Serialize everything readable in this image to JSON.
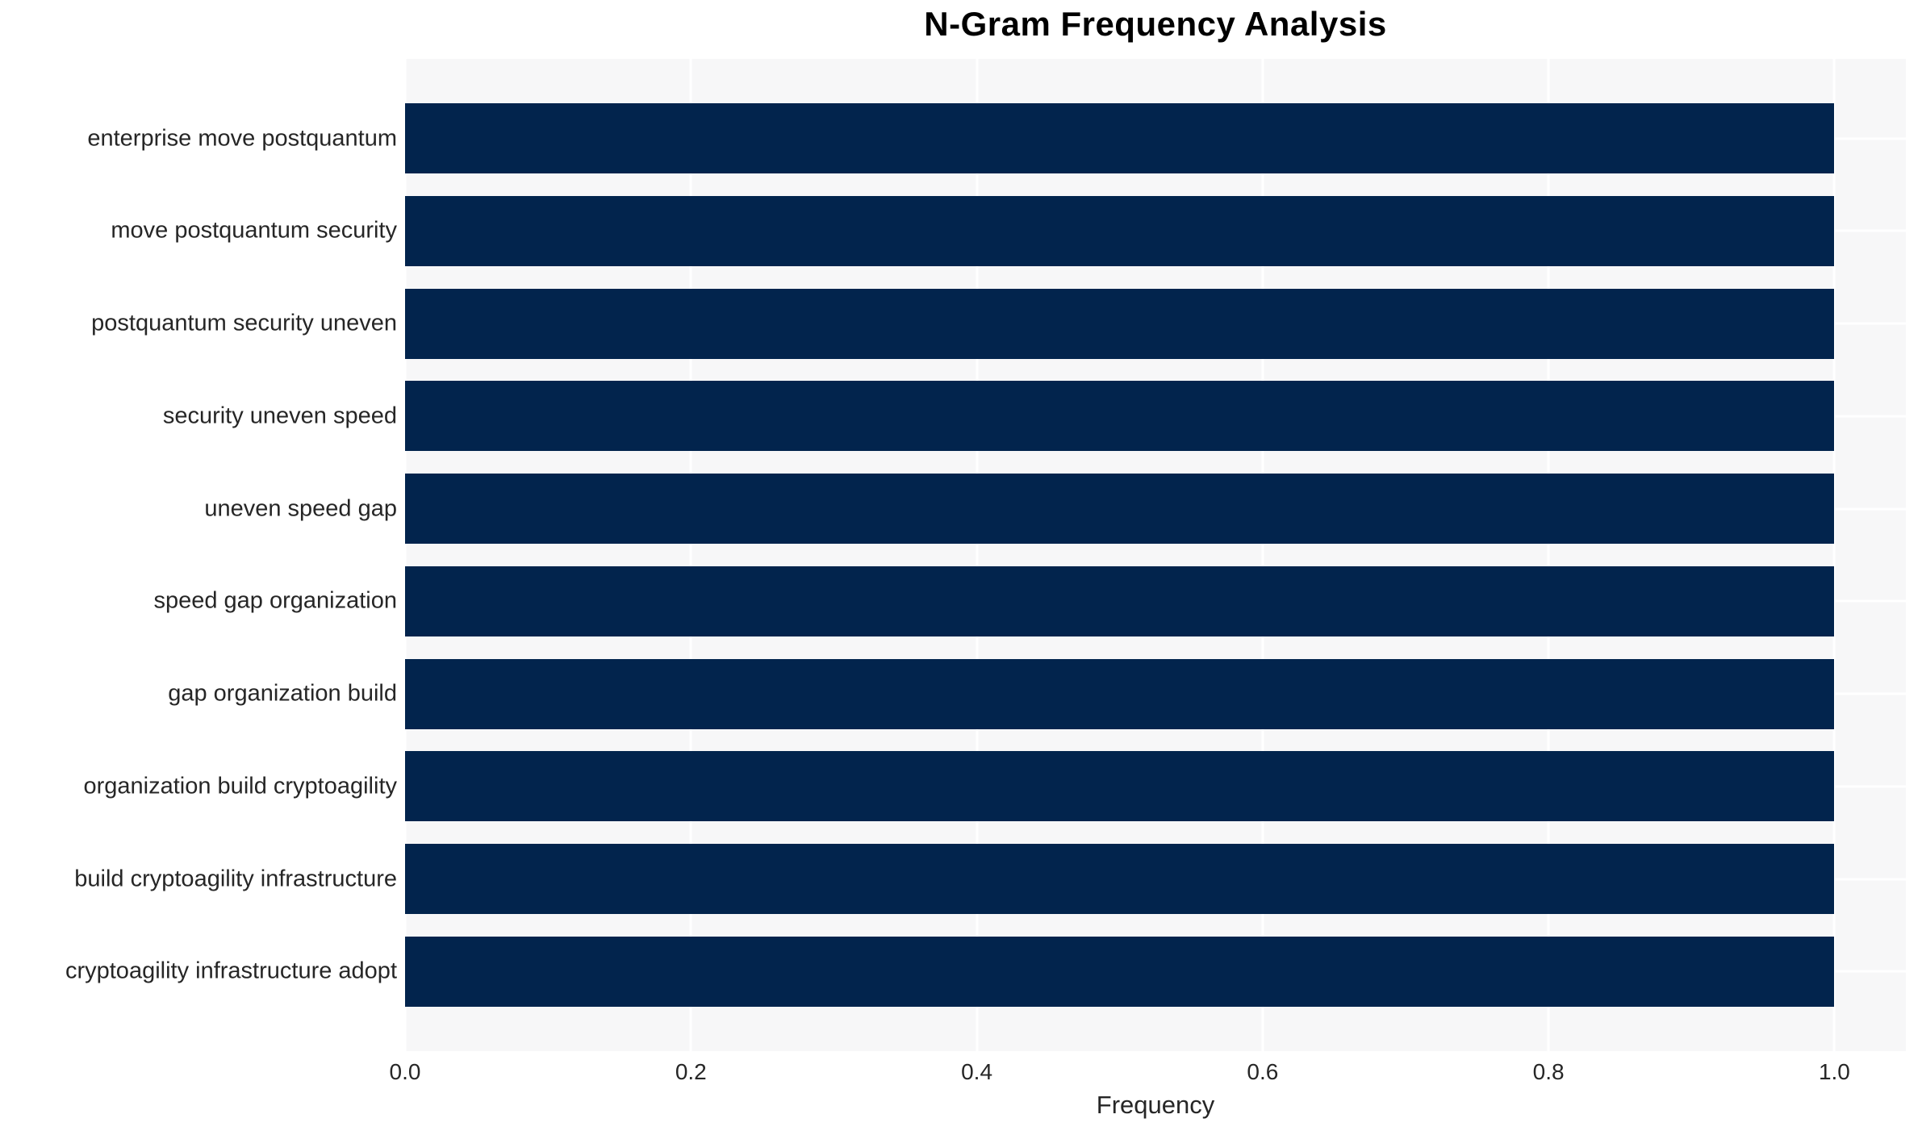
{
  "chart_data": {
    "type": "bar",
    "orientation": "horizontal",
    "title": "N-Gram Frequency Analysis",
    "xlabel": "Frequency",
    "ylabel": "",
    "categories": [
      "enterprise move postquantum",
      "move postquantum security",
      "postquantum security uneven",
      "security uneven speed",
      "uneven speed gap",
      "speed gap organization",
      "gap organization build",
      "organization build cryptoagility",
      "build cryptoagility infrastructure",
      "cryptoagility infrastructure adopt"
    ],
    "values": [
      1.0,
      1.0,
      1.0,
      1.0,
      1.0,
      1.0,
      1.0,
      1.0,
      1.0,
      1.0
    ],
    "xlim": [
      0,
      1.05
    ],
    "xticks": [
      0.0,
      0.2,
      0.4,
      0.6,
      0.8,
      1.0
    ],
    "xtick_labels": [
      "0.0",
      "0.2",
      "0.4",
      "0.6",
      "0.8",
      "1.0"
    ],
    "grid": true,
    "legend": false,
    "colors": {
      "bar": "#02244d",
      "plot_bg": "#f7f7f8",
      "grid": "#ffffff",
      "text": "#262626",
      "title": "#000000"
    }
  }
}
